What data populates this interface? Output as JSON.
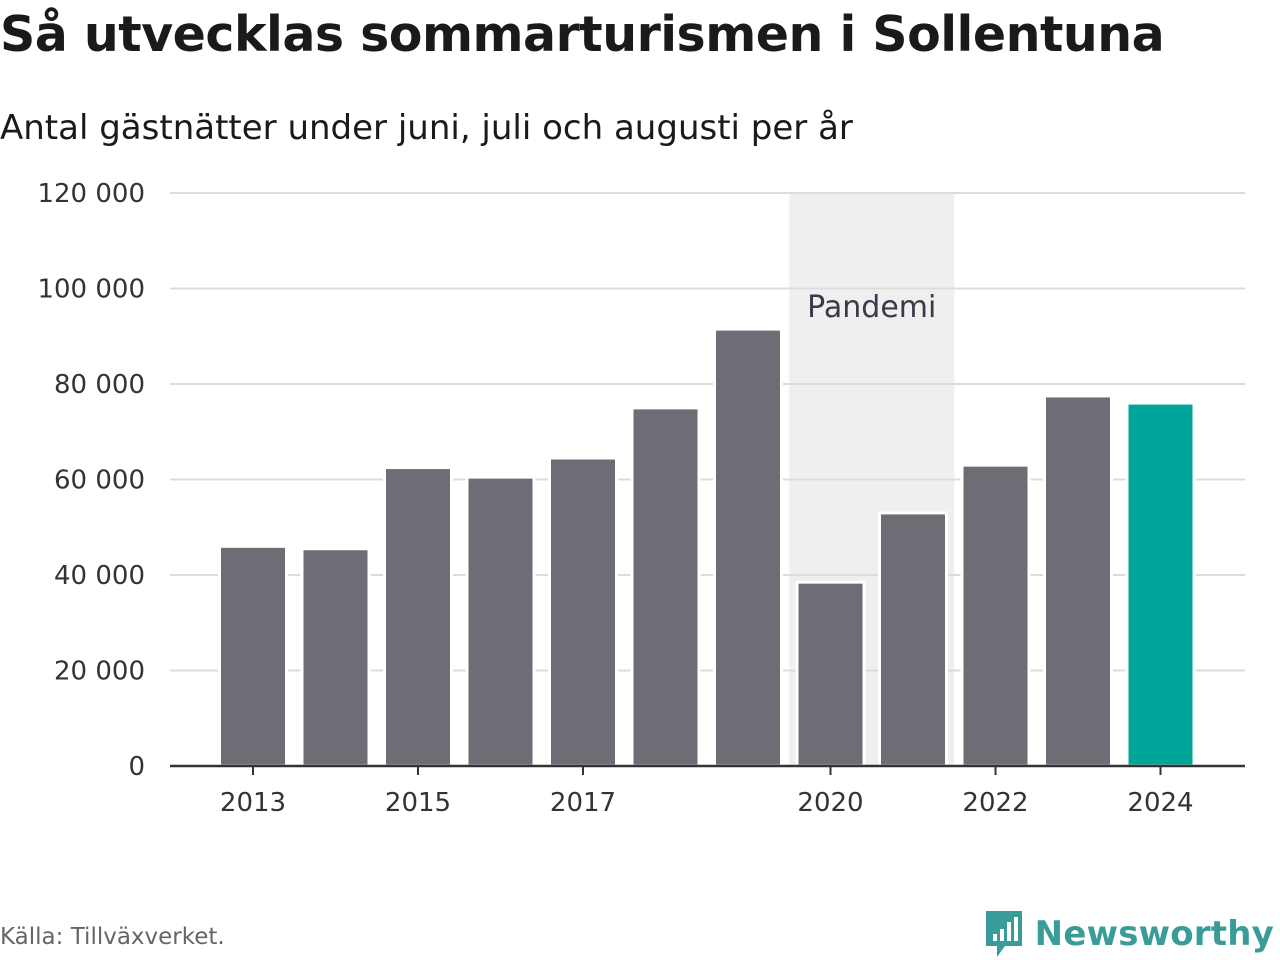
{
  "title": "Så utvecklas sommarturismen i Sollentuna",
  "subtitle": "Antal gästnätter under juni, juli och augusti per år",
  "source": "Källa: Tillväxverket.",
  "brand": {
    "name": "Newsworthy",
    "icon": "bar-chart-speech-bubble-icon"
  },
  "colors": {
    "bar": "#6e6d75",
    "highlight": "#00a59a",
    "band": "#efefef",
    "grid": "#dcdcdc",
    "axis": "#333333",
    "brand": "#3a9c98"
  },
  "chart_data": {
    "type": "bar",
    "categories": [
      "2013",
      "2014",
      "2015",
      "2016",
      "2017",
      "2018",
      "2019",
      "2020",
      "2021",
      "2022",
      "2023",
      "2024"
    ],
    "values": [
      46000,
      45500,
      62500,
      60500,
      64500,
      75000,
      91500,
      38500,
      53000,
      63000,
      77500,
      76000
    ],
    "highlight": "2024",
    "xticks": [
      "2013",
      "2015",
      "2017",
      "2020",
      "2022",
      "2024"
    ],
    "yticks": [
      0,
      20000,
      40000,
      60000,
      80000,
      100000,
      120000
    ],
    "ytick_labels": [
      "0",
      "20 000",
      "40 000",
      "60 000",
      "80 000",
      "100 000",
      "120 000"
    ],
    "ylim": [
      0,
      120000
    ],
    "grid": true,
    "annotation": {
      "label": "Pandemi",
      "from": "2020",
      "to": "2021"
    }
  }
}
